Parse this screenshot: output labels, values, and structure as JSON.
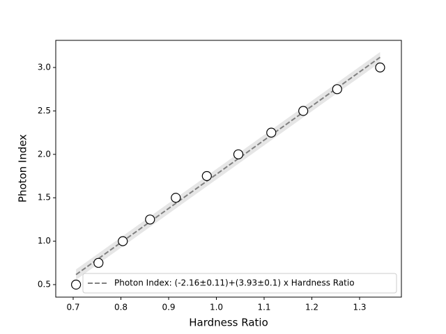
{
  "chart_data": {
    "type": "scatter",
    "xlabel": "Hardness Ratio",
    "ylabel": "Photon Index",
    "xlim": [
      0.6635,
      1.3876
    ],
    "ylim": [
      0.356,
      3.3125
    ],
    "xticks": [
      0.7,
      0.8,
      0.9,
      {
        "value": 1.0,
        "label": "1.0"
      },
      1.1,
      1.2,
      1.3
    ],
    "yticks": [
      0.5,
      {
        "value": 1.0,
        "label": "1.0"
      },
      1.5,
      {
        "value": 2.0,
        "label": "2.0"
      },
      2.5,
      {
        "value": 3.0,
        "label": "3.0"
      }
    ],
    "legend_loc": "lower right",
    "band": {
      "color": "#e6e6e6",
      "x": [
        0.706,
        1.343
      ],
      "lower": [
        0.555,
        3.058
      ],
      "upper": [
        0.675,
        3.178
      ]
    },
    "series": [
      {
        "name": "Photon Index: (-2.16±0.11)+(3.93±0.1) x Hardness Ratio",
        "type": "line",
        "color": "#808080",
        "dashed": true,
        "x": [
          0.706,
          1.343
        ],
        "values": [
          0.615,
          3.118
        ]
      },
      {
        "type": "scatter",
        "color": "#000000",
        "x": [
          0.706,
          0.753,
          0.804,
          0.861,
          0.915,
          0.98,
          1.046,
          1.115,
          1.182,
          1.253,
          1.343
        ],
        "values": [
          0.5,
          0.75,
          1.0,
          1.25,
          1.5,
          1.75,
          2.0,
          2.25,
          2.5,
          2.75,
          3.0
        ]
      }
    ]
  }
}
